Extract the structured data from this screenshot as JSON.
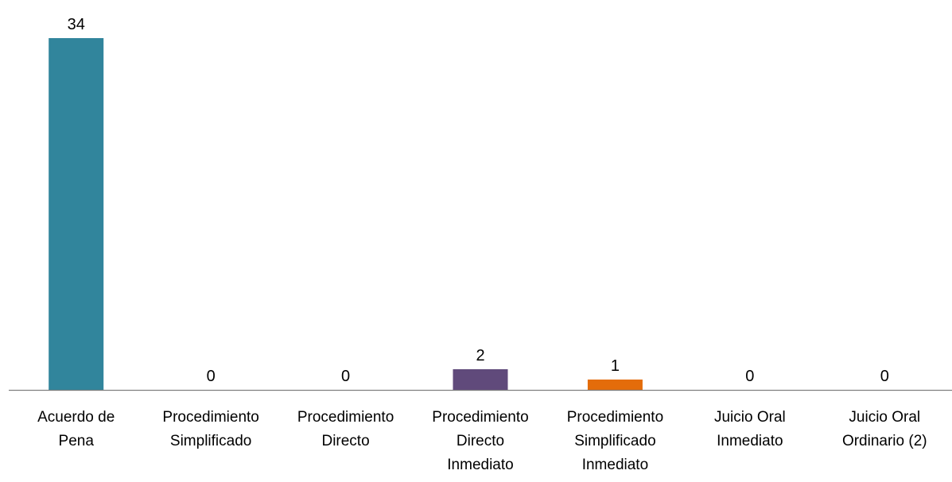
{
  "chart_data": {
    "type": "bar",
    "title": "",
    "xlabel": "",
    "ylabel": "",
    "categories": [
      [
        "Acuerdo de",
        "Pena"
      ],
      [
        "Procedimiento",
        "Simplificado"
      ],
      [
        "Procedimiento",
        "Directo"
      ],
      [
        "Procedimiento",
        "Directo",
        "Inmediato"
      ],
      [
        "Procedimiento",
        "Simplificado",
        "Inmediato"
      ],
      [
        "Juicio Oral",
        "Inmediato"
      ],
      [
        "Juicio Oral",
        "Ordinario (2)"
      ]
    ],
    "values": [
      34,
      0,
      0,
      2,
      1,
      0,
      0
    ],
    "data_labels": [
      "34",
      "0",
      "0",
      "2",
      "1",
      "0",
      "0"
    ],
    "bar_colors": [
      "#31859c",
      "#4bacc6",
      "#4f81bd",
      "#604a7b",
      "#e46c0a",
      "#9bbb59",
      "#8064a2"
    ],
    "ylim": [
      0,
      34
    ],
    "grid": false,
    "legend": "none",
    "axis_color": "#7f7f7f"
  }
}
